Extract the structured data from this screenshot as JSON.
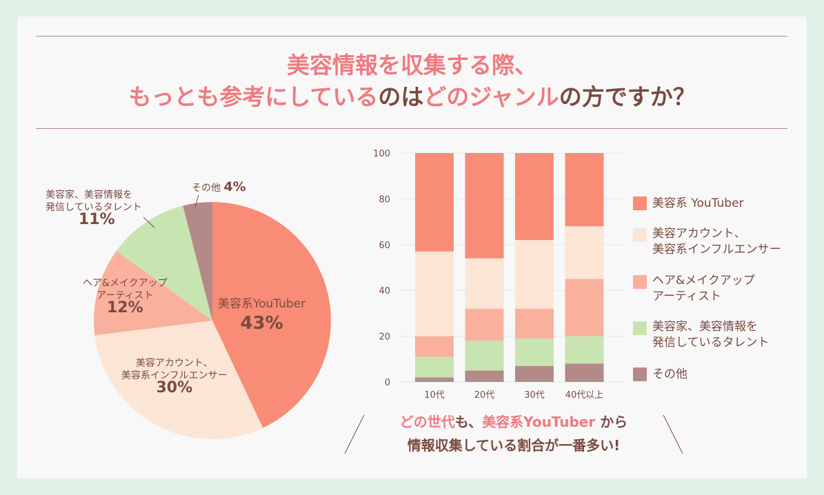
{
  "title": {
    "line1": "美容情報を収集する際、",
    "line2_a": "もっとも参考にしている",
    "line2_b": "のは",
    "line2_c": "どのジャンル",
    "line2_d": "の方ですか？"
  },
  "colors": {
    "youtuber": "#f88c76",
    "account": "#fbe5d5",
    "hair": "#f9b19e",
    "expert": "#c7e4b1",
    "other": "#b38a88",
    "accent": "#f07a80",
    "text": "#7a4a3f"
  },
  "chart_data": [
    {
      "type": "pie",
      "slices": [
        {
          "label": "美容系YouTuber",
          "value": 43,
          "pct_label": "43%"
        },
        {
          "label": "美容アカウント、美容系インフルエンサー",
          "value": 30,
          "pct_label": "30%"
        },
        {
          "label": "ヘア&メイクアップアーティスト",
          "value": 12,
          "pct_label": "12%"
        },
        {
          "label": "美容家、美容情報を発信しているタレント",
          "value": 11,
          "pct_label": "11%"
        },
        {
          "label": "その他",
          "value": 4,
          "pct_label": "4%"
        }
      ]
    },
    {
      "type": "bar",
      "stacked": true,
      "categories": [
        "10代",
        "20代",
        "30代",
        "40代以上"
      ],
      "ylim": [
        0,
        100
      ],
      "yticks": [
        "0",
        "20",
        "40",
        "60",
        "80",
        "100"
      ],
      "grid": true,
      "legend": "right",
      "series": [
        {
          "name": "その他",
          "values": [
            2,
            5,
            7,
            8
          ]
        },
        {
          "name": "美容家、美容情報を発信しているタレント",
          "values": [
            9,
            13,
            12,
            12
          ]
        },
        {
          "name": "ヘア&メイクアップアーティスト",
          "values": [
            9,
            14,
            13,
            25
          ]
        },
        {
          "name": "美容アカウント、美容系インフルエンサー",
          "values": [
            37,
            22,
            30,
            23
          ]
        },
        {
          "name": "美容系 YouTuber",
          "values": [
            43,
            46,
            38,
            32
          ]
        }
      ]
    }
  ],
  "legend": [
    {
      "l1": "美容系 YouTuber",
      "l2": ""
    },
    {
      "l1": "美容アカウント、",
      "l2": "美容系インフルエンサー"
    },
    {
      "l1": "ヘア&メイクアップ",
      "l2": "アーティスト"
    },
    {
      "l1": "美容家、美容情報を",
      "l2": "発信しているタレント"
    },
    {
      "l1": "その他",
      "l2": ""
    }
  ],
  "pie_labels": {
    "youtuber": {
      "l1": "美容系YouTuber",
      "pct": "43%"
    },
    "account": {
      "l1": "美容アカウント、",
      "l2": "美容系インフルエンサー",
      "pct": "30%"
    },
    "hair": {
      "l1": "ヘア&メイクアップ",
      "l2": "アーティスト",
      "pct": "12%"
    },
    "expert": {
      "l1": "美容家、美容情報を",
      "l2": "発信しているタレント",
      "pct": "11%"
    },
    "other": {
      "l1": "その他",
      "pct": "4%"
    }
  },
  "note": {
    "a": "どの世代",
    "b": "も、",
    "c": "美容系YouTuber",
    "d": " から",
    "line2": "情報収集している割合が一番多い!"
  }
}
